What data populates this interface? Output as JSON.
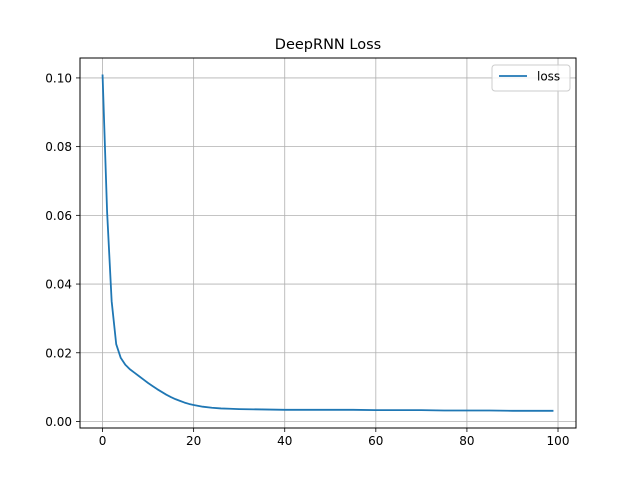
{
  "chart_data": {
    "type": "line",
    "title": "DeepRNN Loss",
    "xlabel": "",
    "ylabel": "",
    "xlim": [
      -4.95,
      103.95
    ],
    "ylim": [
      -0.0019,
      0.1058
    ],
    "grid": true,
    "legend_position": "top-right",
    "x_ticks": [
      0,
      20,
      40,
      60,
      80,
      100
    ],
    "x_tick_labels": [
      "0",
      "20",
      "40",
      "60",
      "80",
      "100"
    ],
    "y_ticks": [
      0.0,
      0.02,
      0.04,
      0.06,
      0.08,
      0.1
    ],
    "y_tick_labels": [
      "0.00",
      "0.02",
      "0.04",
      "0.06",
      "0.08",
      "0.10"
    ],
    "series": [
      {
        "name": "loss",
        "color": "#1f77b4",
        "x": [
          0,
          1,
          2,
          3,
          4,
          5,
          6,
          7,
          8,
          9,
          10,
          11,
          12,
          13,
          14,
          15,
          16,
          17,
          18,
          19,
          20,
          22,
          24,
          26,
          28,
          30,
          35,
          40,
          45,
          50,
          55,
          60,
          65,
          70,
          75,
          80,
          85,
          90,
          95,
          99
        ],
        "y": [
          0.101,
          0.061,
          0.035,
          0.0225,
          0.0185,
          0.0165,
          0.0152,
          0.0142,
          0.0132,
          0.0122,
          0.0112,
          0.0103,
          0.0094,
          0.0086,
          0.0078,
          0.0071,
          0.0065,
          0.006,
          0.0055,
          0.0051,
          0.0048,
          0.0043,
          0.004,
          0.0038,
          0.0037,
          0.0036,
          0.0035,
          0.0034,
          0.0034,
          0.0034,
          0.0034,
          0.0033,
          0.0033,
          0.0033,
          0.0032,
          0.0032,
          0.0032,
          0.0031,
          0.0031,
          0.0031
        ]
      }
    ]
  }
}
